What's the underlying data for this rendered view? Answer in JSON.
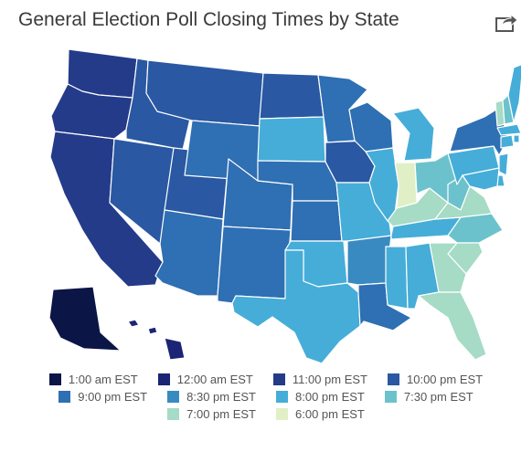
{
  "title": "General Election Poll Closing Times by State",
  "share_icon": "share-icon",
  "legend": [
    {
      "label": "1:00 am EST",
      "color": "#0b1646"
    },
    {
      "label": "12:00 am EST",
      "color": "#1b2475"
    },
    {
      "label": "11:00 pm EST",
      "color": "#243b8a"
    },
    {
      "label": "10:00 pm EST",
      "color": "#2a58a2"
    },
    {
      "label": "9:00 pm EST",
      "color": "#2f6fb3"
    },
    {
      "label": "8:30 pm EST",
      "color": "#3a8ac2"
    },
    {
      "label": "8:00 pm EST",
      "color": "#45add8"
    },
    {
      "label": "7:30 pm EST",
      "color": "#6cc2cc"
    },
    {
      "label": "7:00 pm EST",
      "color": "#a6dbc6"
    },
    {
      "label": "6:00 pm EST",
      "color": "#e1efc6"
    }
  ],
  "states": [
    {
      "code": "WA",
      "time": "11:00 pm EST"
    },
    {
      "code": "OR",
      "time": "11:00 pm EST"
    },
    {
      "code": "CA",
      "time": "11:00 pm EST"
    },
    {
      "code": "NV",
      "time": "10:00 pm EST"
    },
    {
      "code": "ID",
      "time": "10:00 pm EST"
    },
    {
      "code": "MT",
      "time": "10:00 pm EST"
    },
    {
      "code": "UT",
      "time": "10:00 pm EST"
    },
    {
      "code": "AZ",
      "time": "9:00 pm EST"
    },
    {
      "code": "WY",
      "time": "9:00 pm EST"
    },
    {
      "code": "CO",
      "time": "9:00 pm EST"
    },
    {
      "code": "NM",
      "time": "9:00 pm EST"
    },
    {
      "code": "ND",
      "time": "10:00 pm EST"
    },
    {
      "code": "SD",
      "time": "8:00 pm EST"
    },
    {
      "code": "NE",
      "time": "9:00 pm EST"
    },
    {
      "code": "KS",
      "time": "9:00 pm EST"
    },
    {
      "code": "OK",
      "time": "8:00 pm EST"
    },
    {
      "code": "TX",
      "time": "8:00 pm EST"
    },
    {
      "code": "MN",
      "time": "9:00 pm EST"
    },
    {
      "code": "IA",
      "time": "10:00 pm EST"
    },
    {
      "code": "MO",
      "time": "8:00 pm EST"
    },
    {
      "code": "AR",
      "time": "8:30 pm EST"
    },
    {
      "code": "LA",
      "time": "9:00 pm EST"
    },
    {
      "code": "WI",
      "time": "9:00 pm EST"
    },
    {
      "code": "IL",
      "time": "8:00 pm EST"
    },
    {
      "code": "MS",
      "time": "8:00 pm EST"
    },
    {
      "code": "MI",
      "time": "8:00 pm EST"
    },
    {
      "code": "IN",
      "time": "6:00 pm EST"
    },
    {
      "code": "KY",
      "time": "7:00 pm EST"
    },
    {
      "code": "TN",
      "time": "8:00 pm EST"
    },
    {
      "code": "AL",
      "time": "8:00 pm EST"
    },
    {
      "code": "OH",
      "time": "7:30 pm EST"
    },
    {
      "code": "WV",
      "time": "7:30 pm EST"
    },
    {
      "code": "VA",
      "time": "7:00 pm EST"
    },
    {
      "code": "NC",
      "time": "7:30 pm EST"
    },
    {
      "code": "SC",
      "time": "7:00 pm EST"
    },
    {
      "code": "GA",
      "time": "7:00 pm EST"
    },
    {
      "code": "FL",
      "time": "7:00 pm EST"
    },
    {
      "code": "PA",
      "time": "8:00 pm EST"
    },
    {
      "code": "NY",
      "time": "9:00 pm EST"
    },
    {
      "code": "NJ",
      "time": "8:00 pm EST"
    },
    {
      "code": "DE",
      "time": "8:00 pm EST"
    },
    {
      "code": "MD",
      "time": "8:00 pm EST"
    },
    {
      "code": "CT",
      "time": "8:00 pm EST"
    },
    {
      "code": "RI",
      "time": "8:00 pm EST"
    },
    {
      "code": "MA",
      "time": "8:00 pm EST"
    },
    {
      "code": "VT",
      "time": "7:00 pm EST"
    },
    {
      "code": "NH",
      "time": "7:30 pm EST"
    },
    {
      "code": "ME",
      "time": "8:00 pm EST"
    },
    {
      "code": "AK",
      "time": "1:00 am EST"
    },
    {
      "code": "HI",
      "time": "12:00 am EST"
    }
  ]
}
